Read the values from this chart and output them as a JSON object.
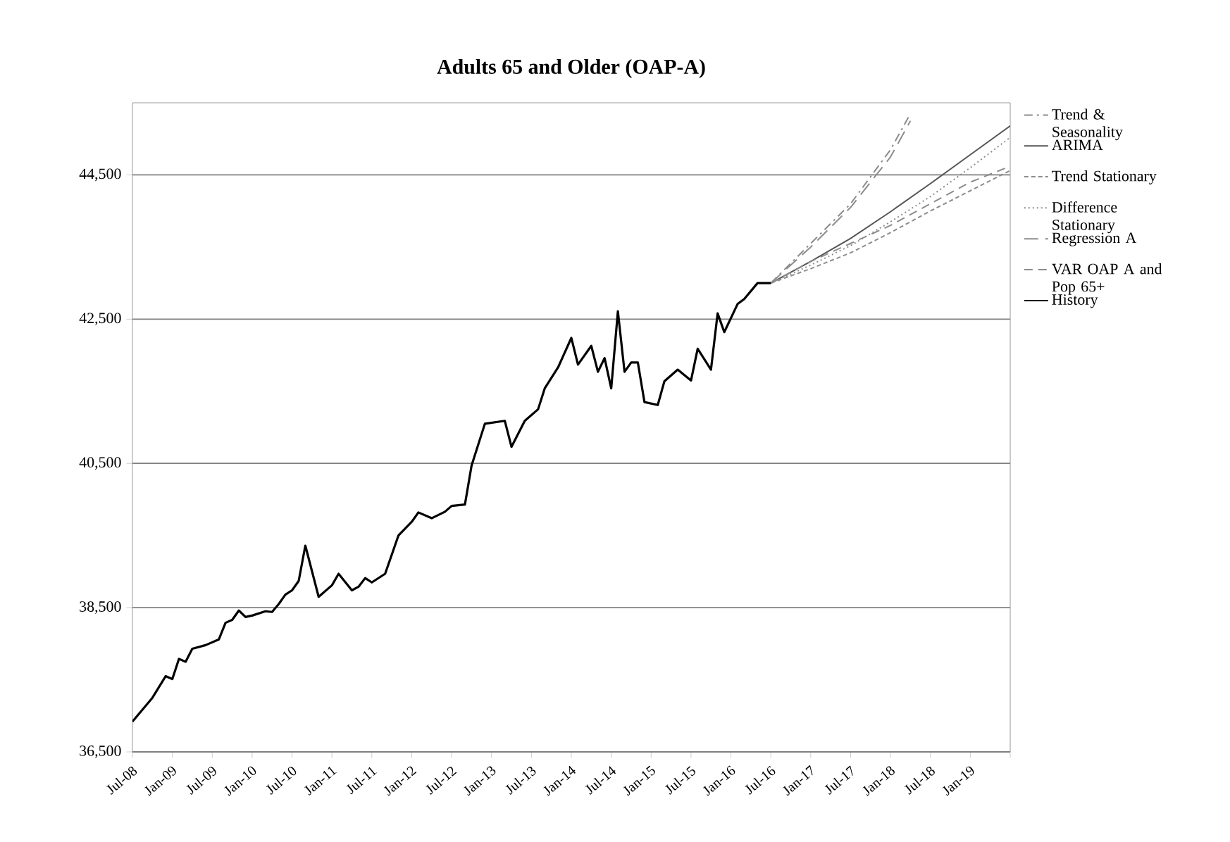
{
  "chart_data": {
    "type": "line",
    "title": "Adults 65 and Older (OAP-A)",
    "xlim": [
      "2008-07",
      "2019-07"
    ],
    "xticks": [
      {
        "value": "2008-07",
        "label": "Jul-08"
      },
      {
        "value": "2009-01",
        "label": "Jan-09"
      },
      {
        "value": "2009-07",
        "label": "Jul-09"
      },
      {
        "value": "2010-01",
        "label": "Jan-10"
      },
      {
        "value": "2010-07",
        "label": "Jul-10"
      },
      {
        "value": "2011-01",
        "label": "Jan-11"
      },
      {
        "value": "2011-07",
        "label": "Jul-11"
      },
      {
        "value": "2012-01",
        "label": "Jan-12"
      },
      {
        "value": "2012-07",
        "label": "Jul-12"
      },
      {
        "value": "2013-01",
        "label": "Jan-13"
      },
      {
        "value": "2013-07",
        "label": "Jul-13"
      },
      {
        "value": "2014-01",
        "label": "Jan-14"
      },
      {
        "value": "2014-07",
        "label": "Jul-14"
      },
      {
        "value": "2015-01",
        "label": "Jan-15"
      },
      {
        "value": "2015-07",
        "label": "Jul-15"
      },
      {
        "value": "2016-01",
        "label": "Jan-16"
      },
      {
        "value": "2016-07",
        "label": "Jul-16"
      },
      {
        "value": "2017-01",
        "label": "Jan-17"
      },
      {
        "value": "2017-07",
        "label": "Jul-17"
      },
      {
        "value": "2018-01",
        "label": "Jan-18"
      },
      {
        "value": "2018-07",
        "label": "Jul-18"
      },
      {
        "value": "2019-01",
        "label": "Jan-19"
      },
      {
        "value": "2019-07",
        "label": null
      }
    ],
    "ylim": [
      36500,
      45500
    ],
    "yticks": [
      {
        "value": 36500,
        "label": "36,500"
      },
      {
        "value": 38500,
        "label": "38,500"
      },
      {
        "value": 40500,
        "label": "40,500"
      },
      {
        "value": 42500,
        "label": "42,500"
      },
      {
        "value": 44500,
        "label": "44,500"
      }
    ],
    "grid": "y",
    "legend": "right",
    "series": [
      {
        "name": "Trend & Seasonality",
        "color": "#8c8c8c",
        "line_style": "dashdot",
        "x": [
          "2016-07",
          "2017-01",
          "2017-07",
          "2018-01",
          "2018-04"
        ],
        "values": [
          43000,
          43550,
          44100,
          44850,
          45350
        ]
      },
      {
        "name": "ARIMA",
        "color": "#555555",
        "line_style": "solid",
        "x": [
          "2016-07",
          "2017-01",
          "2017-07",
          "2018-01",
          "2018-07",
          "2019-01",
          "2019-07"
        ],
        "values": [
          43000,
          43300,
          43620,
          43990,
          44380,
          44780,
          45180
        ]
      },
      {
        "name": "Trend Stationary",
        "color": "#8c8c8c",
        "line_style": "dashed",
        "x": [
          "2016-07",
          "2017-01",
          "2017-07",
          "2018-01",
          "2018-07",
          "2019-01",
          "2019-07"
        ],
        "values": [
          43000,
          43200,
          43420,
          43700,
          44000,
          44280,
          44560
        ]
      },
      {
        "name": "Difference Stationary",
        "color": "#8c8c8c",
        "line_style": "dotted",
        "x": [
          "2016-07",
          "2017-01",
          "2017-07",
          "2018-01",
          "2018-07",
          "2019-01",
          "2019-07"
        ],
        "values": [
          43000,
          43250,
          43520,
          43850,
          44200,
          44600,
          45020
        ]
      },
      {
        "name": "Regression A",
        "color": "#8c8c8c",
        "line_style": "longdashed",
        "x": [
          "2016-07",
          "2017-01",
          "2017-07",
          "2018-01",
          "2018-04"
        ],
        "values": [
          43000,
          43500,
          44050,
          44750,
          45250
        ]
      },
      {
        "name": "VAR OAP A and Pop 65+",
        "color": "#8c8c8c",
        "line_style": "mediumdashed",
        "x": [
          "2016-07",
          "2017-01",
          "2017-07",
          "2018-01",
          "2018-07",
          "2019-01",
          "2019-07"
        ],
        "values": [
          43000,
          43300,
          43550,
          43800,
          44100,
          44400,
          44620
        ]
      },
      {
        "name": "History",
        "color": "#000000",
        "line_style": "solid",
        "x": [
          "2008-07",
          "2008-10",
          "2008-12",
          "2009-01",
          "2009-02",
          "2009-03",
          "2009-04",
          "2009-06",
          "2009-08",
          "2009-09",
          "2009-10",
          "2009-11",
          "2009-12",
          "2010-01",
          "2010-03",
          "2010-04",
          "2010-05",
          "2010-06",
          "2010-07",
          "2010-08",
          "2010-09",
          "2010-11",
          "2011-01",
          "2011-02",
          "2011-04",
          "2011-05",
          "2011-06",
          "2011-07",
          "2011-09",
          "2011-11",
          "2012-01",
          "2012-02",
          "2012-04",
          "2012-06",
          "2012-07",
          "2012-09",
          "2012-10",
          "2012-12",
          "2013-03",
          "2013-04",
          "2013-06",
          "2013-08",
          "2013-09",
          "2013-11",
          "2014-01",
          "2014-02",
          "2014-04",
          "2014-05",
          "2014-06",
          "2014-07",
          "2014-08",
          "2014-09",
          "2014-10",
          "2014-11",
          "2014-12",
          "2015-02",
          "2015-03",
          "2015-05",
          "2015-07",
          "2015-08",
          "2015-10",
          "2015-11",
          "2015-12",
          "2016-02",
          "2016-03",
          "2016-05",
          "2016-07"
        ],
        "values": [
          36920,
          37250,
          37550,
          37510,
          37790,
          37750,
          37930,
          37980,
          38060,
          38290,
          38330,
          38460,
          38370,
          38390,
          38450,
          38440,
          38550,
          38680,
          38740,
          38870,
          39360,
          38650,
          38810,
          38970,
          38740,
          38790,
          38910,
          38850,
          38970,
          39500,
          39690,
          39820,
          39740,
          39830,
          39910,
          39930,
          40470,
          41050,
          41090,
          40730,
          41090,
          41250,
          41540,
          41830,
          42240,
          41870,
          42130,
          41770,
          41960,
          41540,
          42610,
          41770,
          41900,
          41900,
          41350,
          41310,
          41640,
          41800,
          41650,
          42090,
          41800,
          42580,
          42320,
          42710,
          42780,
          43000,
          43000
        ]
      }
    ]
  }
}
